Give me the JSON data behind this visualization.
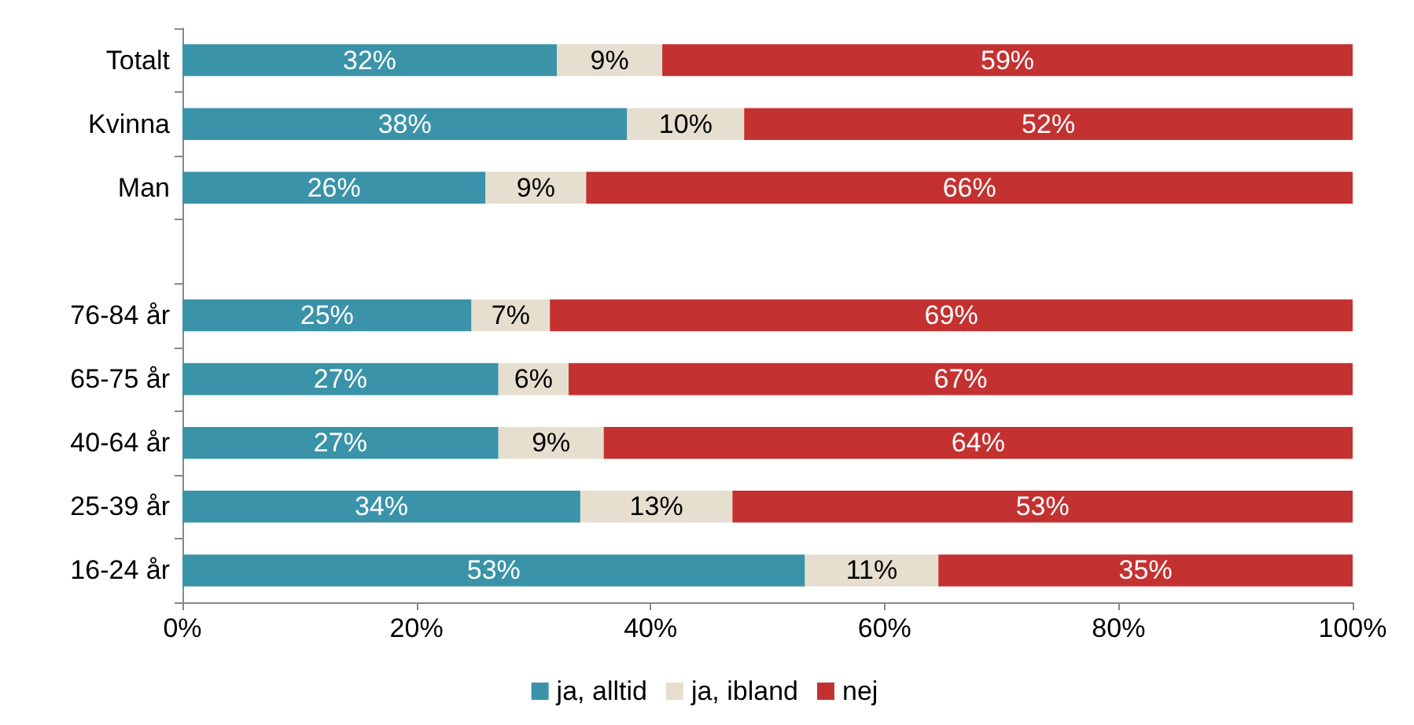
{
  "chart_data": {
    "type": "bar",
    "orientation": "horizontal",
    "stacked": true,
    "legend": "bottom",
    "grid": false,
    "categories": [
      "Totalt",
      "Kvinna",
      "Man",
      null,
      "76-84 år",
      "65-75 år",
      "40-64 år",
      "25-39 år",
      "16-24 år"
    ],
    "xlim": [
      0,
      100
    ],
    "xticks": [
      {
        "value": 0,
        "label": "0%"
      },
      {
        "value": 20,
        "label": "20%"
      },
      {
        "value": 40,
        "label": "40%"
      },
      {
        "value": 60,
        "label": "60%"
      },
      {
        "value": 80,
        "label": "80%"
      },
      {
        "value": 100,
        "label": "100%"
      }
    ],
    "series": [
      {
        "name": "ja, alltid",
        "color": "#3a93a8",
        "values": [
          32,
          38,
          25.9,
          null,
          24.7,
          27,
          27,
          34,
          53.2
        ],
        "value_labels": [
          "32%",
          "38%",
          "26%",
          null,
          "25%",
          "27%",
          "27%",
          "34%",
          "53%"
        ]
      },
      {
        "name": "ja, ibland",
        "color": "#e6dfcf",
        "values": [
          9,
          10,
          8.6,
          null,
          6.7,
          6,
          9,
          13,
          11.4
        ],
        "value_labels": [
          "9%",
          "10%",
          "9%",
          null,
          "7%",
          "6%",
          "9%",
          "13%",
          "11%"
        ]
      },
      {
        "name": "nej",
        "color": "#c43131",
        "values": [
          59,
          52,
          65.5,
          null,
          68.6,
          67,
          64,
          53,
          35.4
        ],
        "value_labels": [
          "59%",
          "52%",
          "66%",
          null,
          "69%",
          "67%",
          "64%",
          "53%",
          "35%"
        ]
      }
    ]
  }
}
